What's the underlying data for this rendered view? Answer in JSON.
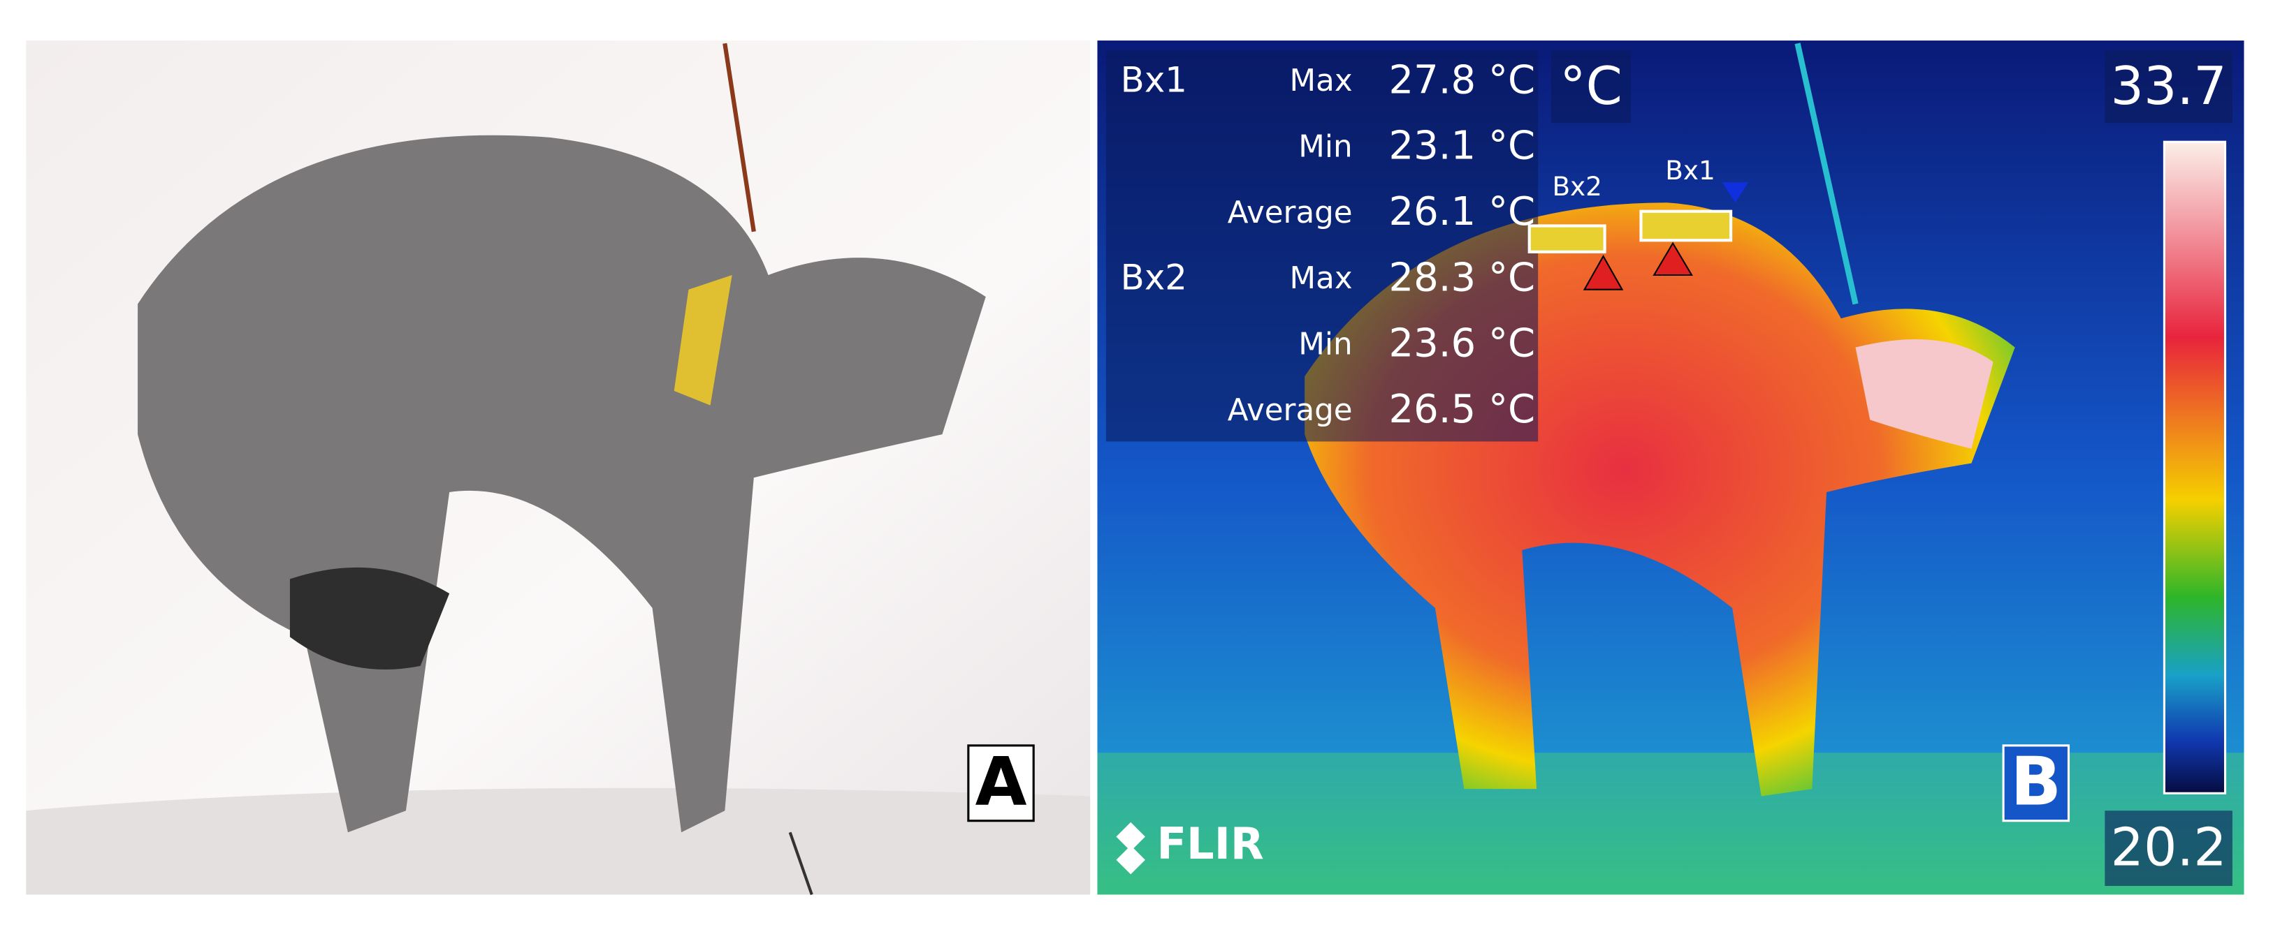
{
  "panels": {
    "a": {
      "label": "A"
    },
    "b": {
      "label": "B",
      "units": "°C",
      "scale_max": "33.7",
      "scale_min": "20.2",
      "brand": "FLIR",
      "readouts": [
        {
          "box": "Bx1",
          "rows": [
            {
              "stat": "Max",
              "value": "27.8 °C"
            },
            {
              "stat": "Min",
              "value": "23.1 °C"
            },
            {
              "stat": "Average",
              "value": "26.1 °C"
            }
          ]
        },
        {
          "box": "Bx2",
          "rows": [
            {
              "stat": "Max",
              "value": "28.3 °C"
            },
            {
              "stat": "Min",
              "value": "23.6 °C"
            },
            {
              "stat": "Average",
              "value": "26.5 °C"
            }
          ]
        }
      ],
      "markers": [
        "Bx2",
        "Bx1"
      ]
    }
  }
}
